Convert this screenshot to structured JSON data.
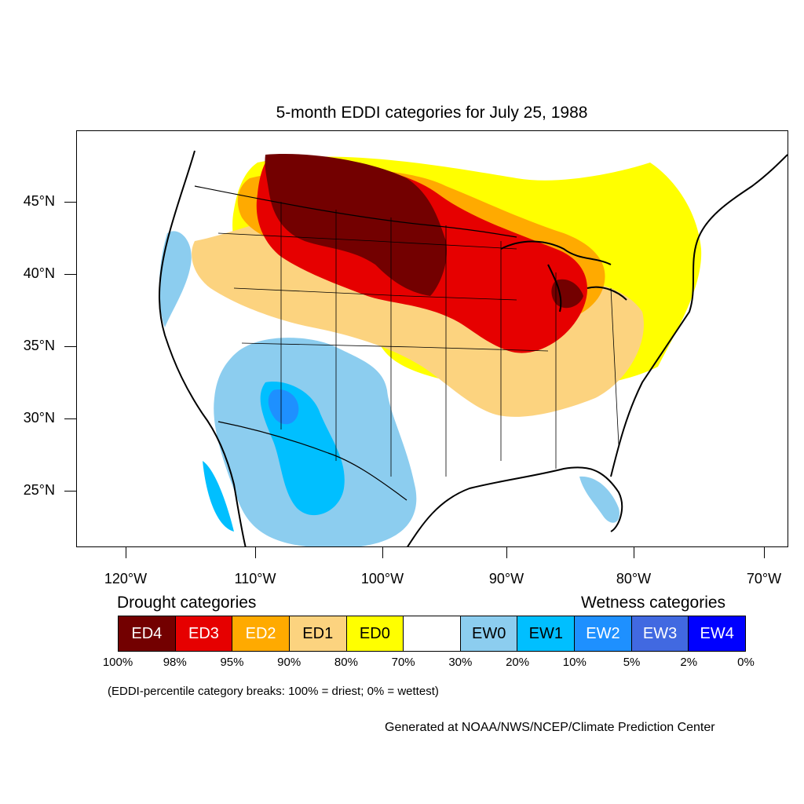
{
  "title": "5-month EDDI categories for July 25, 1988",
  "lat_labels": [
    "45°N",
    "40°N",
    "35°N",
    "30°N",
    "25°N"
  ],
  "lon_labels": [
    "120°W",
    "110°W",
    "100°W",
    "90°W",
    "80°W",
    "70°W"
  ],
  "legend": {
    "drought_title": "Drought categories",
    "wetness_title": "Wetness categories",
    "categories": [
      {
        "label": "ED4",
        "color": "#730000",
        "text_color": "#ffffff"
      },
      {
        "label": "ED3",
        "color": "#e60000",
        "text_color": "#ffffff"
      },
      {
        "label": "ED2",
        "color": "#ffaa00",
        "text_color": "#ffffff"
      },
      {
        "label": "ED1",
        "color": "#fcd37f",
        "text_color": "#000000"
      },
      {
        "label": "ED0",
        "color": "#ffff00",
        "text_color": "#000000"
      },
      {
        "label": "",
        "color": "#ffffff",
        "text_color": "#000000"
      },
      {
        "label": "EW0",
        "color": "#8ccdef",
        "text_color": "#000000"
      },
      {
        "label": "EW1",
        "color": "#00bfff",
        "text_color": "#000000"
      },
      {
        "label": "EW2",
        "color": "#1e90ff",
        "text_color": "#ffffff"
      },
      {
        "label": "EW3",
        "color": "#4169e1",
        "text_color": "#ffffff"
      },
      {
        "label": "EW4",
        "color": "#0000ff",
        "text_color": "#ffffff"
      }
    ],
    "breaks": [
      "100%",
      "98%",
      "95%",
      "90%",
      "80%",
      "70%",
      "30%",
      "20%",
      "10%",
      "5%",
      "2%",
      "0%"
    ]
  },
  "note": "(EDDI-percentile category breaks: 100% = driest; 0% = wettest)",
  "credit": "Generated at NOAA/NWS/NCEP/Climate Prediction Center"
}
